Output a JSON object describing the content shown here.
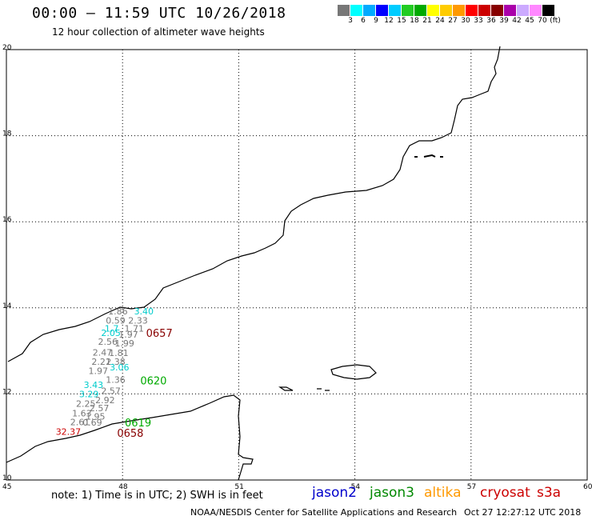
{
  "header": {
    "title": "00:00 – 11:59 UTC 10/26/2018",
    "subtitle": "12 hour collection of altimeter wave heights"
  },
  "colorbar": {
    "swatches": [
      "#777777",
      "#00ffff",
      "#00aaff",
      "#0000ff",
      "#00ccff",
      "#22cc22",
      "#00aa00",
      "#ffff00",
      "#ffcc00",
      "#ff9900",
      "#ff0000",
      "#cc0000",
      "#880000",
      "#aa00aa",
      "#ccaaff",
      "#ff88ff",
      "#000000"
    ],
    "labels": [
      "3",
      "6",
      "9",
      "12",
      "15",
      "18",
      "21",
      "24",
      "27",
      "30",
      "33",
      "36",
      "39",
      "42",
      "45",
      "70",
      "(ft)"
    ]
  },
  "axes": {
    "lat_labels": [
      "20",
      "18",
      "16",
      "14",
      "12",
      "10"
    ],
    "lon_labels": [
      "45",
      "48",
      "51",
      "54",
      "57",
      "60"
    ]
  },
  "observations": [
    {
      "v": "1.86",
      "c": "#777777",
      "lon": 47.88,
      "lat": 13.85
    },
    {
      "v": "3.40",
      "c": "#00cccc",
      "lon": 48.55,
      "lat": 13.85
    },
    {
      "v": "0.59",
      "c": "#777777",
      "lon": 47.82,
      "lat": 13.63
    },
    {
      "v": "2.33",
      "c": "#777777",
      "lon": 48.4,
      "lat": 13.63
    },
    {
      "v": "1.7",
      "c": "#00cccc",
      "lon": 47.72,
      "lat": 13.45
    },
    {
      "v": "1.71",
      "c": "#777777",
      "lon": 48.3,
      "lat": 13.45
    },
    {
      "v": "2.05",
      "c": "#00cccc",
      "lon": 47.7,
      "lat": 13.35
    },
    {
      "v": "1.97",
      "c": "#777777",
      "lon": 48.15,
      "lat": 13.31
    },
    {
      "v": "2.56",
      "c": "#777777",
      "lon": 47.62,
      "lat": 13.14
    },
    {
      "v": "1.99",
      "c": "#777777",
      "lon": 48.05,
      "lat": 13.1
    },
    {
      "v": "2.47",
      "c": "#777777",
      "lon": 47.48,
      "lat": 12.89
    },
    {
      "v": "1.81",
      "c": "#777777",
      "lon": 47.9,
      "lat": 12.88
    },
    {
      "v": "2.21",
      "c": "#777777",
      "lon": 47.45,
      "lat": 12.68
    },
    {
      "v": "2.38",
      "c": "#777777",
      "lon": 47.82,
      "lat": 12.68
    },
    {
      "v": "3.06",
      "c": "#00cccc",
      "lon": 47.92,
      "lat": 12.55
    },
    {
      "v": "1.97",
      "c": "#777777",
      "lon": 47.37,
      "lat": 12.46
    },
    {
      "v": "1.36",
      "c": "#777777",
      "lon": 47.82,
      "lat": 12.26
    },
    {
      "v": "3.43",
      "c": "#00cccc",
      "lon": 47.25,
      "lat": 12.14
    },
    {
      "v": "2.57",
      "c": "#777777",
      "lon": 47.7,
      "lat": 12.0
    },
    {
      "v": "3.29",
      "c": "#00cccc",
      "lon": 47.13,
      "lat": 11.92
    },
    {
      "v": "2.92",
      "c": "#777777",
      "lon": 47.55,
      "lat": 11.78
    },
    {
      "v": "2.25",
      "c": "#777777",
      "lon": 47.05,
      "lat": 11.7
    },
    {
      "v": "2.57",
      "c": "#777777",
      "lon": 47.4,
      "lat": 11.6
    },
    {
      "v": "1.63",
      "c": "#777777",
      "lon": 46.95,
      "lat": 11.48
    },
    {
      "v": "1.95",
      "c": "#777777",
      "lon": 47.3,
      "lat": 11.4
    },
    {
      "v": "2.61",
      "c": "#777777",
      "lon": 46.9,
      "lat": 11.27
    },
    {
      "v": "0.69",
      "c": "#777777",
      "lon": 47.22,
      "lat": 11.26
    },
    {
      "v": "32.37",
      "c": "#cc0000",
      "lon": 46.6,
      "lat": 11.05
    }
  ],
  "time_labels": [
    {
      "t": "0657",
      "c": "#880000",
      "lon": 48.95,
      "lat": 13.33
    },
    {
      "t": "0620",
      "c": "#00aa00",
      "lon": 48.8,
      "lat": 12.22
    },
    {
      "t": "0619",
      "c": "#00aa00",
      "lon": 48.4,
      "lat": 11.25
    },
    {
      "t": "0658",
      "c": "#880000",
      "lon": 48.2,
      "lat": 11.0
    }
  ],
  "note": "note: 1) Time is in UTC; 2) SWH is in feet",
  "legend": [
    {
      "label": "jason2",
      "color": "#0000cc"
    },
    {
      "label": "jason3",
      "color": "#008800"
    },
    {
      "label": "altika",
      "color": "#ff9900"
    },
    {
      "label": "cryosat",
      "color": "#cc0000"
    },
    {
      "label": "s3a",
      "color": "#cc0000"
    }
  ],
  "footer": {
    "org": "NOAA/NESDIS Center for Satellite Applications and Research",
    "timestamp": "Oct 27 12:27:12 UTC 2018"
  }
}
